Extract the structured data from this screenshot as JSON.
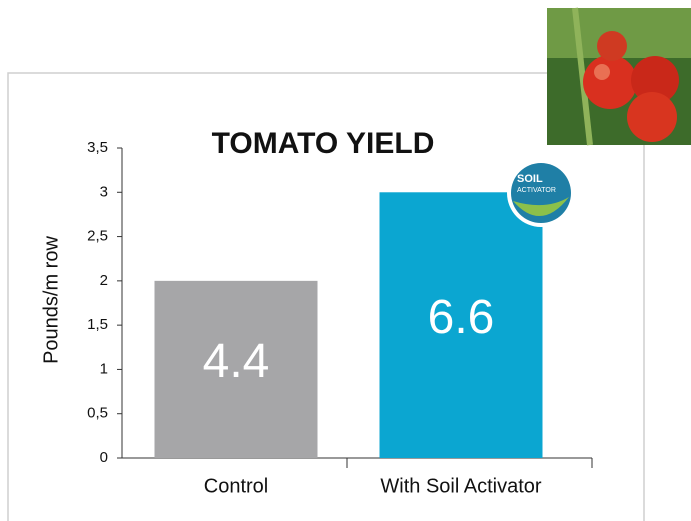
{
  "chart_data": {
    "type": "bar",
    "title": "TOMATO YIELD",
    "y_label": "Pounds/m row",
    "categories": [
      "Control",
      "With Soil Activator"
    ],
    "series": [
      {
        "values": [
          2,
          3
        ],
        "colors": [
          "#a6a6a8",
          "#0ba6d1"
        ]
      }
    ],
    "annotations": [
      "4.4",
      "6.6"
    ],
    "badge": [
      "SOIL",
      "ACTIVATOR"
    ],
    "ylim": [
      0,
      3.5
    ],
    "yticks": [
      0,
      {
        "value": 0.5,
        "label": "0,5"
      },
      1,
      {
        "value": 1.5,
        "label": "1,5"
      },
      2,
      {
        "value": 2.5,
        "label": "2,5"
      },
      3,
      {
        "value": 3.5,
        "label": "3,5"
      }
    ],
    "grid": false
  }
}
